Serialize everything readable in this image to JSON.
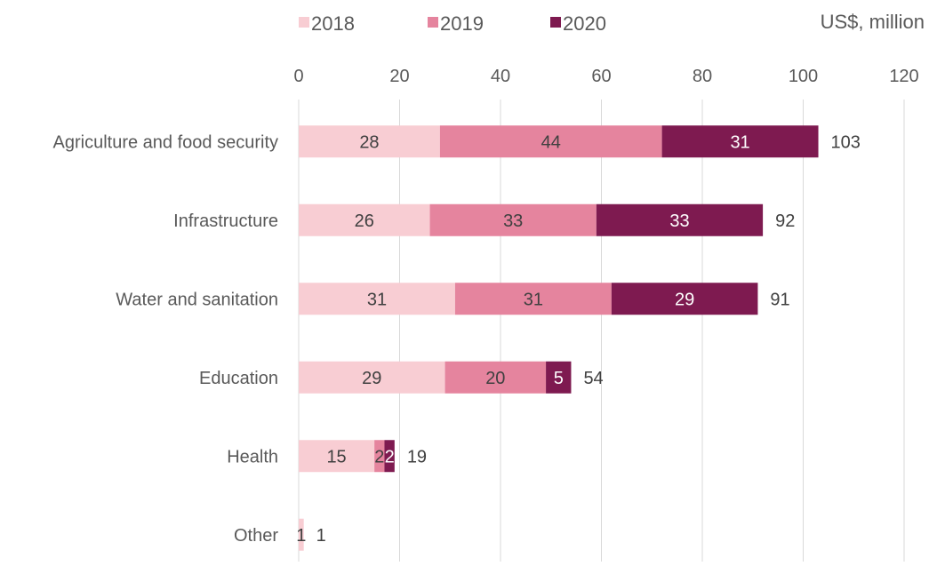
{
  "chart_data": {
    "type": "bar",
    "orientation": "horizontal",
    "stacked": true,
    "unit_label": "US$, million",
    "categories": [
      "Agriculture and food security",
      "Infrastructure",
      "Water and sanitation",
      "Education",
      "Health",
      "Other"
    ],
    "series": [
      {
        "name": "2018",
        "color": "#F8CDD3",
        "label_color": "#404040",
        "values": [
          28,
          26,
          31,
          29,
          15,
          1
        ]
      },
      {
        "name": "2019",
        "color": "#E5849E",
        "label_color": "#404040",
        "values": [
          44,
          33,
          31,
          20,
          2,
          0
        ]
      },
      {
        "name": "2020",
        "color": "#7E1A50",
        "label_color": "#ffffff",
        "values": [
          31,
          33,
          29,
          5,
          2,
          0
        ]
      }
    ],
    "totals": [
      103,
      92,
      91,
      54,
      19,
      1
    ],
    "x_ticks": [
      0,
      20,
      40,
      60,
      80,
      100,
      120
    ],
    "xlim": [
      0,
      120
    ],
    "x_axis_position": "top",
    "grid": "vertical",
    "legend_position": "top-left"
  }
}
